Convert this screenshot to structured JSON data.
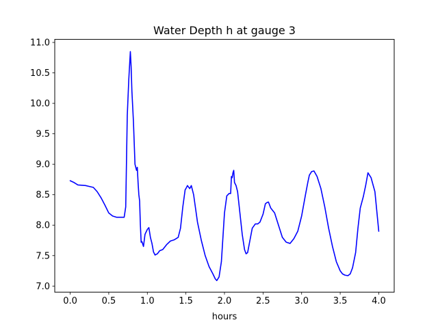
{
  "chart_data": {
    "type": "line",
    "title": "Water Depth h at gauge 3",
    "xlabel": "hours",
    "ylabel": "",
    "xlim": [
      -0.2,
      4.2
    ],
    "ylim": [
      6.9,
      11.05
    ],
    "x_ticks": [
      0.0,
      0.5,
      1.0,
      1.5,
      2.0,
      2.5,
      3.0,
      3.5,
      4.0
    ],
    "x_tick_labels": [
      "0.0",
      "0.5",
      "1.0",
      "1.5",
      "2.0",
      "2.5",
      "3.0",
      "3.5",
      "4.0"
    ],
    "y_ticks": [
      7.0,
      7.5,
      8.0,
      8.5,
      9.0,
      9.5,
      10.0,
      10.5,
      11.0
    ],
    "y_tick_labels": [
      "7.0",
      "7.5",
      "8.0",
      "8.5",
      "9.0",
      "9.5",
      "10.0",
      "10.5",
      "11.0"
    ],
    "grid": false,
    "legend": "none",
    "series": [
      {
        "color": "#0000ff",
        "x": [
          0.0,
          0.05,
          0.1,
          0.2,
          0.3,
          0.35,
          0.4,
          0.45,
          0.5,
          0.55,
          0.6,
          0.65,
          0.7,
          0.72,
          0.74,
          0.76,
          0.78,
          0.79,
          0.8,
          0.82,
          0.84,
          0.86,
          0.87,
          0.88,
          0.89,
          0.9,
          0.91,
          0.92,
          0.93,
          0.95,
          0.97,
          1.0,
          1.02,
          1.04,
          1.06,
          1.08,
          1.1,
          1.13,
          1.16,
          1.2,
          1.25,
          1.3,
          1.35,
          1.4,
          1.43,
          1.46,
          1.49,
          1.5,
          1.52,
          1.55,
          1.57,
          1.6,
          1.65,
          1.7,
          1.75,
          1.8,
          1.85,
          1.88,
          1.9,
          1.93,
          1.96,
          2.0,
          2.03,
          2.06,
          2.08,
          2.09,
          2.1,
          2.11,
          2.12,
          2.13,
          2.15,
          2.17,
          2.2,
          2.23,
          2.26,
          2.28,
          2.3,
          2.33,
          2.36,
          2.4,
          2.43,
          2.46,
          2.5,
          2.53,
          2.55,
          2.57,
          2.6,
          2.65,
          2.7,
          2.75,
          2.8,
          2.85,
          2.9,
          2.95,
          3.0,
          3.05,
          3.08,
          3.1,
          3.13,
          3.16,
          3.2,
          3.25,
          3.3,
          3.35,
          3.4,
          3.45,
          3.5,
          3.53,
          3.56,
          3.6,
          3.63,
          3.66,
          3.7,
          3.73,
          3.76,
          3.8,
          3.83,
          3.86,
          3.9,
          3.95,
          4.0
        ],
        "y": [
          8.73,
          8.7,
          8.66,
          8.65,
          8.62,
          8.55,
          8.45,
          8.33,
          8.2,
          8.15,
          8.13,
          8.13,
          8.13,
          8.3,
          9.8,
          10.4,
          10.85,
          10.6,
          10.2,
          9.7,
          9.0,
          8.9,
          8.95,
          8.7,
          8.5,
          8.4,
          8.0,
          7.72,
          7.73,
          7.65,
          7.85,
          7.93,
          7.96,
          7.8,
          7.7,
          7.56,
          7.51,
          7.53,
          7.58,
          7.6,
          7.68,
          7.74,
          7.76,
          7.8,
          7.95,
          8.3,
          8.58,
          8.6,
          8.65,
          8.6,
          8.65,
          8.5,
          8.05,
          7.75,
          7.5,
          7.32,
          7.2,
          7.12,
          7.09,
          7.15,
          7.4,
          8.2,
          8.48,
          8.52,
          8.52,
          8.8,
          8.78,
          8.86,
          8.9,
          8.7,
          8.65,
          8.55,
          8.2,
          7.85,
          7.6,
          7.53,
          7.55,
          7.75,
          7.95,
          8.02,
          8.02,
          8.05,
          8.18,
          8.35,
          8.37,
          8.38,
          8.28,
          8.2,
          8.0,
          7.8,
          7.72,
          7.7,
          7.78,
          7.9,
          8.15,
          8.5,
          8.7,
          8.82,
          8.88,
          8.89,
          8.8,
          8.6,
          8.3,
          7.95,
          7.65,
          7.4,
          7.25,
          7.2,
          7.18,
          7.17,
          7.2,
          7.3,
          7.55,
          7.95,
          8.28,
          8.47,
          8.65,
          8.86,
          8.78,
          8.55,
          7.9
        ]
      }
    ]
  }
}
